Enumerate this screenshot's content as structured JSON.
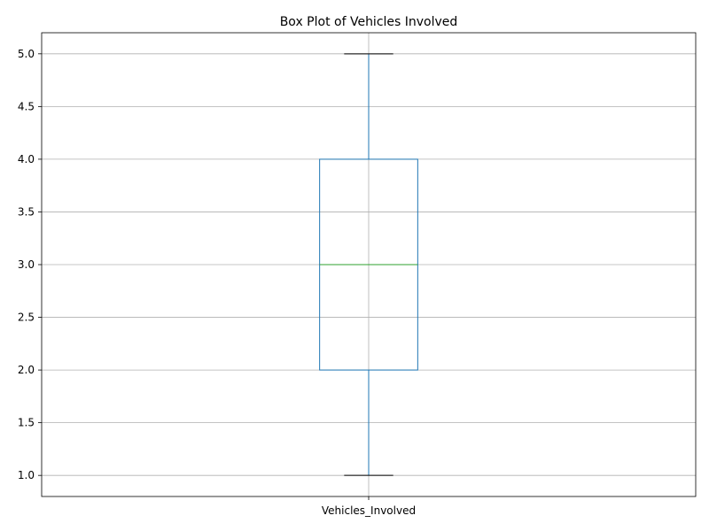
{
  "chart_data": {
    "type": "box",
    "title": "Box Plot of Vehicles Involved",
    "xlabel": "",
    "ylabel": "",
    "categories": [
      "Vehicles_Involved"
    ],
    "boxes": [
      {
        "category": "Vehicles_Involved",
        "whisker_low": 1.0,
        "q1": 2.0,
        "median": 3.0,
        "q3": 4.0,
        "whisker_high": 5.0
      }
    ],
    "ylim": [
      0.8,
      5.2
    ],
    "yticks": [
      1.0,
      1.5,
      2.0,
      2.5,
      3.0,
      3.5,
      4.0,
      4.5,
      5.0
    ],
    "ytick_labels": [
      "1.0",
      "1.5",
      "2.0",
      "2.5",
      "3.0",
      "3.5",
      "4.0",
      "4.5",
      "5.0"
    ],
    "grid": true,
    "colors": {
      "box": "#1f77b4",
      "median": "#2ca02c",
      "caps": "#000000",
      "grid": "#b0b0b0"
    }
  }
}
